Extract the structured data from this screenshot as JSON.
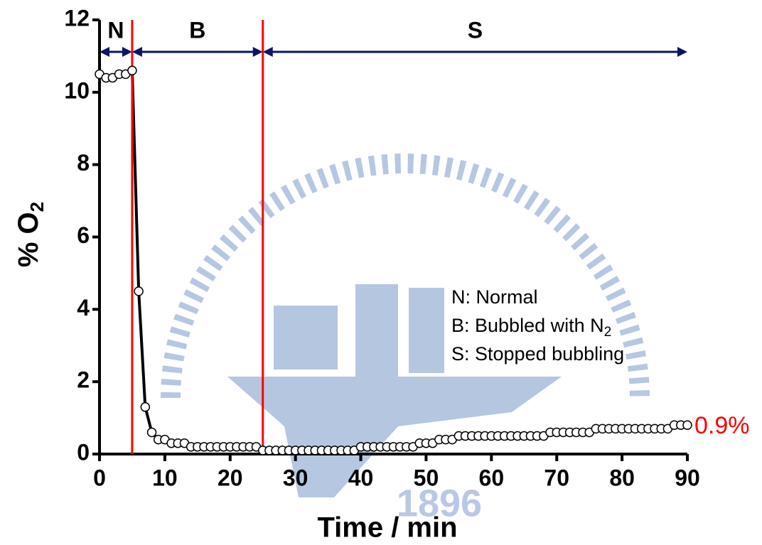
{
  "chart_data": {
    "type": "line",
    "x": [
      0,
      1,
      2,
      3,
      4,
      5,
      6,
      7,
      8,
      9,
      10,
      11,
      12,
      13,
      14,
      15,
      16,
      17,
      18,
      19,
      20,
      21,
      22,
      23,
      24,
      25,
      26,
      27,
      28,
      29,
      30,
      31,
      32,
      33,
      34,
      35,
      36,
      37,
      38,
      39,
      40,
      41,
      42,
      43,
      44,
      45,
      46,
      47,
      48,
      49,
      50,
      51,
      52,
      53,
      54,
      55,
      56,
      57,
      58,
      59,
      60,
      61,
      62,
      63,
      64,
      65,
      66,
      67,
      68,
      69,
      70,
      71,
      72,
      73,
      74,
      75,
      76,
      77,
      78,
      79,
      80,
      81,
      82,
      83,
      84,
      85,
      86,
      87,
      88,
      89,
      90
    ],
    "series": [
      {
        "color": "#000000",
        "marker_fill": "#ffffff",
        "values": [
          10.5,
          10.4,
          10.4,
          10.5,
          10.5,
          10.6,
          4.5,
          1.3,
          0.6,
          0.4,
          0.4,
          0.3,
          0.3,
          0.3,
          0.2,
          0.2,
          0.2,
          0.2,
          0.2,
          0.2,
          0.2,
          0.2,
          0.2,
          0.2,
          0.2,
          0.1,
          0.1,
          0.1,
          0.1,
          0.1,
          0.1,
          0.1,
          0.1,
          0.1,
          0.1,
          0.1,
          0.1,
          0.1,
          0.1,
          0.1,
          0.2,
          0.2,
          0.2,
          0.2,
          0.2,
          0.2,
          0.2,
          0.2,
          0.2,
          0.3,
          0.3,
          0.3,
          0.4,
          0.4,
          0.4,
          0.5,
          0.5,
          0.5,
          0.5,
          0.5,
          0.5,
          0.5,
          0.5,
          0.5,
          0.5,
          0.5,
          0.5,
          0.5,
          0.5,
          0.6,
          0.6,
          0.6,
          0.6,
          0.6,
          0.6,
          0.6,
          0.7,
          0.7,
          0.7,
          0.7,
          0.7,
          0.7,
          0.7,
          0.7,
          0.7,
          0.7,
          0.7,
          0.7,
          0.8,
          0.8,
          0.8
        ]
      }
    ],
    "xlim": [
      0,
      90
    ],
    "xticks": [
      0,
      10,
      20,
      30,
      40,
      50,
      60,
      70,
      80,
      90
    ],
    "ylim": [
      0,
      12
    ],
    "yticks": [
      0,
      2,
      4,
      6,
      8,
      10,
      12
    ],
    "xlabel": "Time / min",
    "ylabel": {
      "text": "% O",
      "sub": "2"
    },
    "vlines": {
      "color": "#ff0000",
      "values": [
        5,
        25
      ]
    },
    "regions": {
      "color": "#0d1466",
      "items": [
        {
          "label": "N",
          "start": 0,
          "end": 5
        },
        {
          "label": "B",
          "start": 5,
          "end": 25
        },
        {
          "label": "S",
          "start": 25,
          "end": 90
        }
      ]
    },
    "notes": [
      {
        "text": "N: Normal"
      },
      {
        "text": "B: Bubbled with N",
        "sub": "2"
      },
      {
        "text": "S: Stopped bubbling"
      }
    ],
    "annotation": {
      "text": "0.9%",
      "color": "#ff0000"
    },
    "watermark": "1896"
  }
}
